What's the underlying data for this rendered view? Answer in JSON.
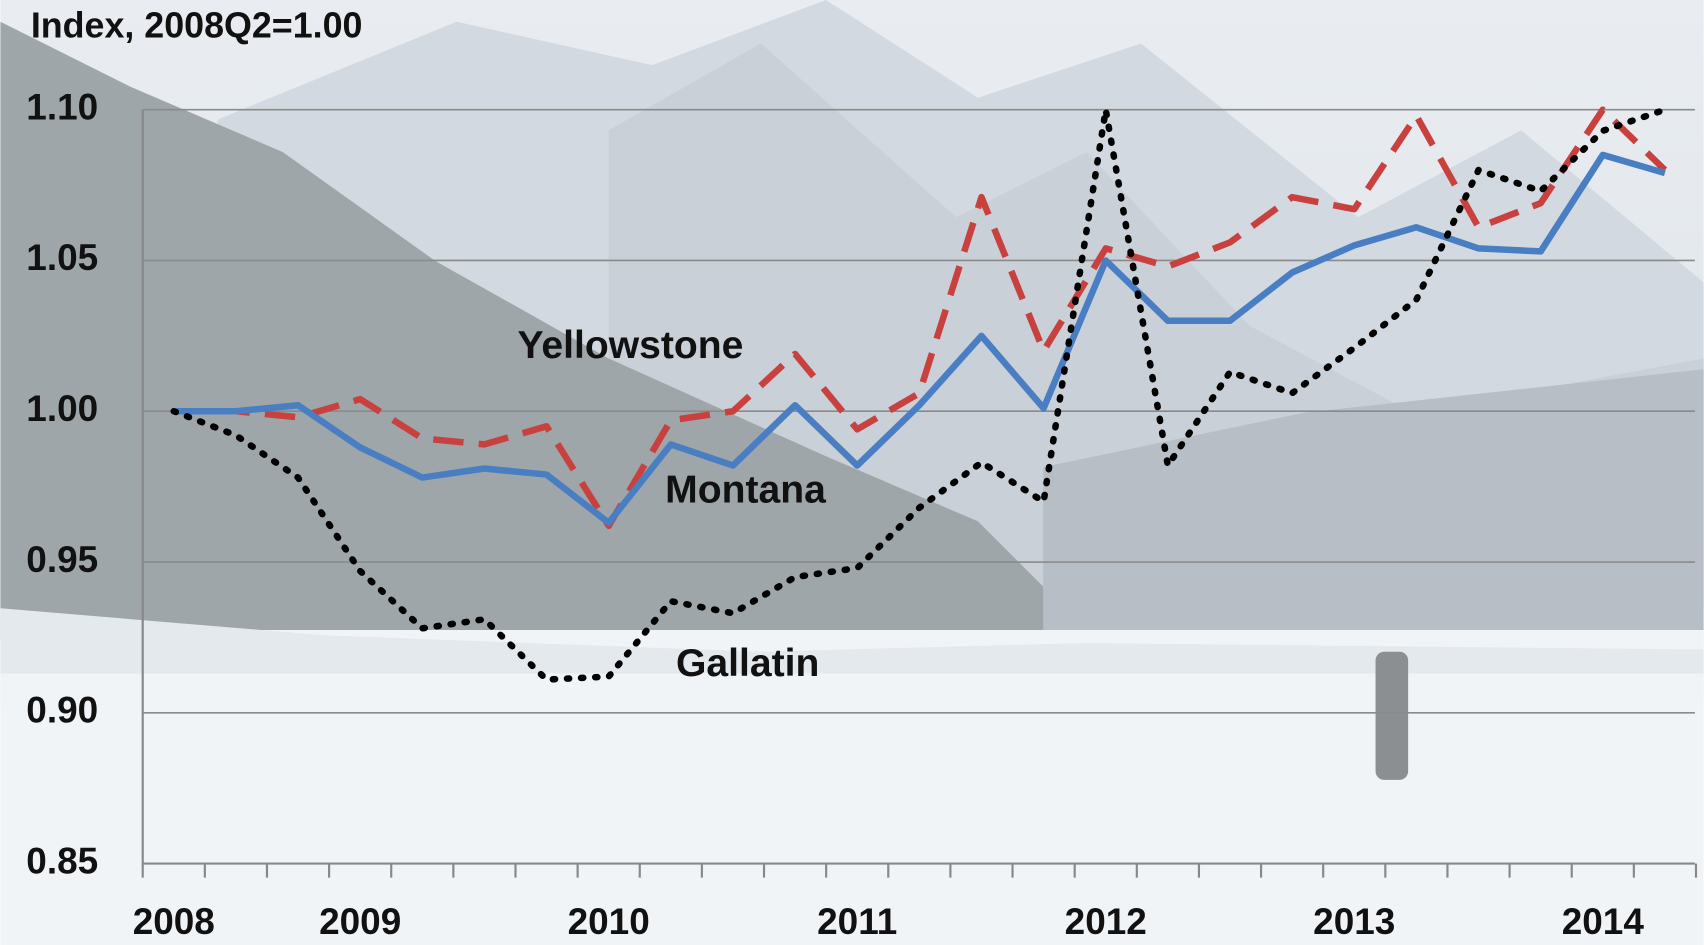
{
  "chart_data": {
    "type": "line",
    "title": "Index, 2008Q2=1.00",
    "categories": [
      "2008",
      null,
      null,
      "2009",
      null,
      null,
      null,
      "2010",
      null,
      null,
      null,
      "2011",
      null,
      null,
      null,
      "2012",
      null,
      null,
      null,
      "2013",
      null,
      null,
      null,
      "2014",
      null
    ],
    "series": [
      {
        "name": "Yellowstone",
        "color": "#c9413f",
        "dash": "dashed",
        "values": [
          1.0,
          1.0,
          0.998,
          1.004,
          0.991,
          0.989,
          0.995,
          0.962,
          0.997,
          1.0,
          1.019,
          0.994,
          1.006,
          1.071,
          1.02,
          1.054,
          1.048,
          1.056,
          1.071,
          1.067,
          1.098,
          1.061,
          1.069,
          1.1,
          1.08
        ]
      },
      {
        "name": "Montana",
        "color": "#4a7ec2",
        "dash": "solid",
        "values": [
          1.0,
          1.0,
          1.002,
          0.988,
          0.978,
          0.981,
          0.979,
          0.963,
          0.989,
          0.982,
          1.002,
          0.982,
          1.002,
          1.025,
          1.001,
          1.05,
          1.03,
          1.03,
          1.046,
          1.055,
          1.061,
          1.054,
          1.053,
          1.085,
          1.079
        ]
      },
      {
        "name": "Gallatin",
        "color": "#000000",
        "dash": "dotted",
        "values": [
          1.0,
          0.992,
          0.978,
          0.947,
          0.928,
          0.931,
          0.911,
          0.912,
          0.937,
          0.933,
          0.945,
          0.948,
          0.968,
          0.983,
          0.97,
          1.1,
          0.982,
          1.013,
          1.006,
          1.021,
          1.037,
          1.08,
          1.073,
          1.093,
          1.1
        ]
      }
    ],
    "ylim": [
      0.85,
      1.1
    ],
    "yticks": [
      0.85,
      {
        "value": 0.9,
        "label": "0.90"
      },
      0.95,
      {
        "value": 1.0,
        "label": "1.00"
      },
      1.05,
      {
        "value": 1.1,
        "label": "1.10"
      }
    ],
    "grid": true
  }
}
